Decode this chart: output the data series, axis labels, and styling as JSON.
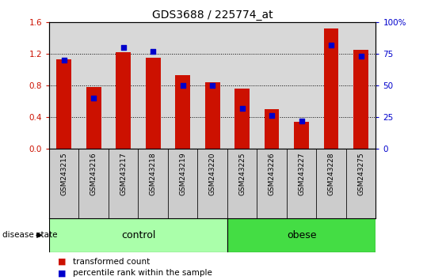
{
  "title": "GDS3688 / 225774_at",
  "samples": [
    "GSM243215",
    "GSM243216",
    "GSM243217",
    "GSM243218",
    "GSM243219",
    "GSM243220",
    "GSM243225",
    "GSM243226",
    "GSM243227",
    "GSM243228",
    "GSM243275"
  ],
  "transformed_count": [
    1.13,
    0.78,
    1.22,
    1.15,
    0.93,
    0.84,
    0.76,
    0.5,
    0.34,
    1.52,
    1.25
  ],
  "percentile_rank": [
    70,
    40,
    80,
    77,
    50,
    50,
    32,
    26,
    22,
    82,
    73
  ],
  "ylim_left": [
    0,
    1.6
  ],
  "ylim_right": [
    0,
    100
  ],
  "yticks_left": [
    0,
    0.4,
    0.8,
    1.2,
    1.6
  ],
  "yticks_right": [
    0,
    25,
    50,
    75,
    100
  ],
  "bar_color": "#cc1100",
  "dot_color": "#0000cc",
  "groups": [
    {
      "label": "control",
      "indices": [
        0,
        1,
        2,
        3,
        4,
        5
      ],
      "color": "#aaffaa"
    },
    {
      "label": "obese",
      "indices": [
        6,
        7,
        8,
        9,
        10
      ],
      "color": "#44dd44"
    }
  ],
  "disease_state_label": "disease state",
  "legend_items": [
    {
      "label": "transformed count",
      "color": "#cc1100"
    },
    {
      "label": "percentile rank within the sample",
      "color": "#0000cc"
    }
  ],
  "bar_width": 0.5,
  "bg_color": "#ffffff",
  "plot_bg_color": "#d8d8d8",
  "label_bg_color": "#cccccc"
}
